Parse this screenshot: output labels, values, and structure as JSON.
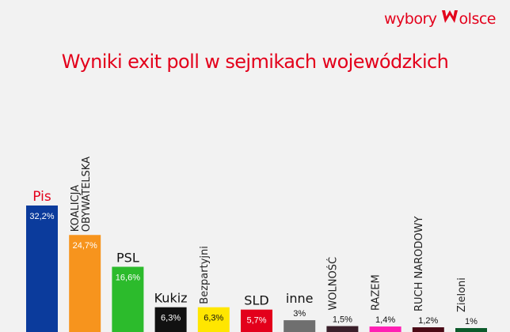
{
  "logo": {
    "text_before": "wybory",
    "mark_icon": "w-logo-icon",
    "text_after": "olsce"
  },
  "chart_data": {
    "type": "bar",
    "title": "Wyniki exit poll w sejmikach wojewódzkich",
    "categories": [
      "Pis",
      "KOALICJA\nOBYWATELSKA",
      "PSL",
      "Kukiz",
      "Bezpartyjni",
      "SLD",
      "inne",
      "WOLNOŚĆ",
      "RAZEM",
      "RUCH NARODOWY",
      "Zieloni"
    ],
    "values": [
      32.2,
      24.7,
      16.6,
      6.3,
      6.3,
      5.7,
      3,
      1.5,
      1.4,
      1.2,
      1
    ],
    "value_labels": [
      "32,2%",
      "24,7%",
      "16,6%",
      "6,3%",
      "6,3%",
      "5,7%",
      "3%",
      "1,5%",
      "1,4%",
      "1,2%",
      "1%"
    ],
    "label_orientation": [
      "horizontal",
      "vertical",
      "horizontal",
      "horizontal",
      "vertical",
      "horizontal",
      "horizontal",
      "vertical",
      "vertical",
      "vertical",
      "vertical"
    ],
    "colors": [
      "#0b3b9c",
      "#f7941d",
      "#2cbb2c",
      "#111111",
      "#ffe600",
      "#e3001b",
      "#6f6f6f",
      "#3a1f2a",
      "#ff1fb4",
      "#4a0a16",
      "#0b5a2a"
    ],
    "label_colors": [
      "#e3001b",
      "#222222",
      "#111111",
      "#111111",
      "#222222",
      "#111111",
      "#111111",
      "#222222",
      "#222222",
      "#222222",
      "#222222"
    ],
    "value_label_colors": [
      "#ffffff",
      "#ffffff",
      "#ffffff",
      "#ffffff",
      "#111111",
      "#ffffff",
      "#111111",
      "#111111",
      "#111111",
      "#111111",
      "#111111"
    ],
    "value_inside": [
      true,
      true,
      true,
      true,
      true,
      true,
      false,
      false,
      false,
      false,
      false
    ],
    "ylim": [
      0,
      33
    ],
    "grid": false,
    "legend": "none"
  }
}
